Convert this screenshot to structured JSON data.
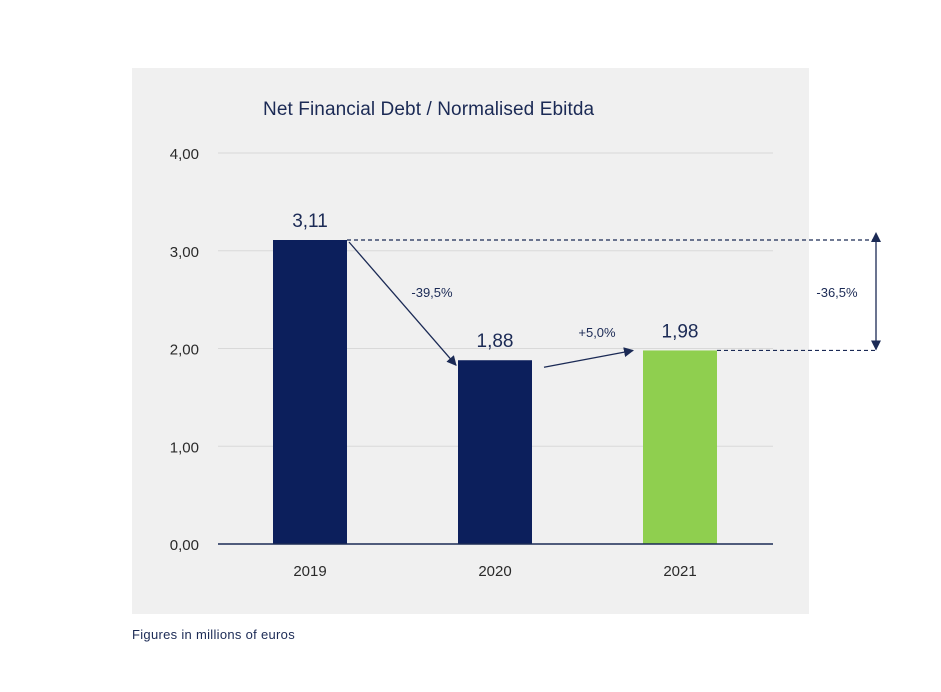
{
  "chart_data": {
    "type": "bar",
    "title": "Net Financial Debt / Normalised Ebitda",
    "categories": [
      "2019",
      "2020",
      "2021"
    ],
    "values": [
      3.11,
      1.88,
      1.98
    ],
    "value_labels": [
      "3,11",
      "1,88",
      "1,98"
    ],
    "ylim": [
      0,
      4
    ],
    "yticks": [
      0,
      1,
      2,
      3,
      4
    ],
    "ytick_labels": [
      "0,00",
      "1,00",
      "2,00",
      "3,00",
      "4,00"
    ],
    "grid": true,
    "xlabel": "",
    "ylabel": "",
    "bar_colors": [
      "#0c1f5c",
      "#0c1f5c",
      "#8fcf4f"
    ],
    "annotations": [
      {
        "text": "-39,5%",
        "from": "2019",
        "to": "2020"
      },
      {
        "text": "+5,0%",
        "from": "2020",
        "to": "2021"
      },
      {
        "text": "-36,5%",
        "from_value": 3.11,
        "to_value": 1.98
      }
    ]
  },
  "footnote": "Figures in millions of euros",
  "colors": {
    "panel_background": "#f0f0f0",
    "text": "#1b2a55",
    "axis": "#1b2a55",
    "grid": "#d9d9d9"
  }
}
